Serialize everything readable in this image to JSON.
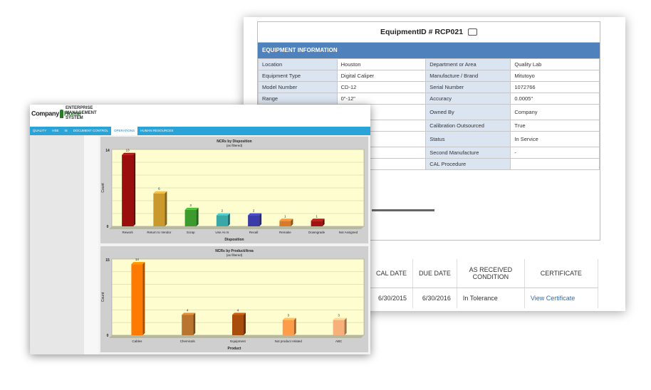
{
  "equipment": {
    "title": "EquipmentID # RCP021",
    "section": "EQUIPMENT INFORMATION",
    "rows": [
      {
        "l1": "Location",
        "v1": "Houston",
        "l2": "Department or Area",
        "v2": "Quality Lab"
      },
      {
        "l1": "Equipment Type",
        "v1": "Digital Caliper",
        "l2": "Manufacture / Brand",
        "v2": "Mitutoyo"
      },
      {
        "l1": "Model Number",
        "v1": "CD-12",
        "l2": "Serial Number",
        "v2": "1072766"
      },
      {
        "l1": "Range",
        "v1": "0\"-12\"",
        "l2": "Accuracy",
        "v2": "0.0005\""
      },
      {
        "l1": "",
        "v1": "",
        "l2": "Owned By",
        "v2": "Company"
      },
      {
        "l1": "",
        "v1": "",
        "l2": "Calibration Outsourced",
        "v2": "True"
      },
      {
        "l1": "",
        "v1": "",
        "l2": "Status",
        "v2": "In Service"
      },
      {
        "l1": "",
        "v1": "",
        "l2": "Second Manufacture",
        "v2": "-"
      },
      {
        "l1": "",
        "v1": "",
        "l2": "CAL Procedure",
        "v2": ""
      }
    ],
    "calibration": {
      "headers": [
        "CAL DATE",
        "DUE DATE",
        "AS RECEIVED CONDITION",
        "CERTIFICATE"
      ],
      "row": {
        "cal_date": "6/30/2015",
        "due_date": "6/30/2016",
        "condition": "In Tolerance",
        "certificate": "View Certificate"
      }
    }
  },
  "ems": {
    "logo_company": "Company",
    "logo_home": "Home",
    "system_name": [
      "ENTERPRISE",
      "MANAGEMENT",
      "SYSTEM"
    ],
    "nav": [
      "QUALITY",
      "HSE",
      "IS",
      "DOCUMENT CONTROL",
      "OPERATIONS",
      "HUMAN RESOURCES"
    ],
    "active_nav": "OPERATIONS"
  },
  "chart_data": [
    {
      "type": "bar",
      "title": "NCRs by Disposition",
      "subtitle": "(as filtered)",
      "xlabel": "Disposition",
      "ylabel": "Count",
      "ylim": [
        0,
        14
      ],
      "yticks": [
        "14",
        "0"
      ],
      "categories": [
        "Rework",
        "Return to Vendor",
        "Scrap",
        "Use As Is",
        "Recall",
        "Remake",
        "Downgrade",
        "Not Assigned"
      ],
      "values": [
        13,
        6,
        3,
        2,
        2,
        1,
        1,
        null
      ],
      "data_labels": [
        "13",
        "6",
        "3",
        "2",
        "2",
        "1",
        "1",
        ""
      ],
      "colors": [
        "#9b0e0e",
        "#c9992d",
        "#3c9b2c",
        "#3aa8a8",
        "#3a3aa8",
        "#d9792a",
        "#a31212",
        "#999999"
      ],
      "background": "#fdfdcf"
    },
    {
      "type": "bar",
      "title": "NCRs by Product/Area",
      "subtitle": "(as filtered)",
      "xlabel": "Product",
      "ylabel": "Count",
      "ylim": [
        0,
        15
      ],
      "yticks": [
        "15",
        "0"
      ],
      "categories": [
        "Cables",
        "Chemicals",
        "Equipment",
        "Not product related",
        "ABC"
      ],
      "values": [
        14,
        4,
        4,
        3,
        3
      ],
      "data_labels": [
        "14",
        "4",
        "4",
        "3",
        "3"
      ],
      "colors": [
        "#ff7a00",
        "#b9742f",
        "#a84d0c",
        "#ff9c4a",
        "#f7b07a"
      ],
      "background": "#fdfdcf"
    }
  ]
}
